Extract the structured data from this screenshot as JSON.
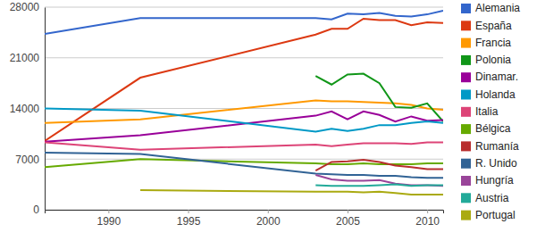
{
  "chart_data": {
    "type": "line",
    "x": [
      1986,
      1992,
      2003,
      2004,
      2005,
      2006,
      2007,
      2008,
      2009,
      2010,
      2011
    ],
    "xlim": [
      1986,
      2011
    ],
    "xticks": [
      1990,
      1995,
      2000,
      2005,
      2010
    ],
    "ylim": [
      0,
      28000
    ],
    "yticks": [
      0,
      7000,
      14000,
      21000,
      28000
    ],
    "grid": true,
    "legend": "right",
    "series": [
      {
        "name": "Alemania",
        "color": "#3366cc",
        "values": [
          24300,
          26500,
          26500,
          26300,
          27100,
          27000,
          27200,
          26800,
          26700,
          27000,
          27500
        ]
      },
      {
        "name": "España",
        "color": "#dc3912",
        "values": [
          9500,
          18250,
          24200,
          25000,
          25000,
          26400,
          26200,
          26200,
          25500,
          25900,
          25800
        ]
      },
      {
        "name": "Francia",
        "color": "#ff9900",
        "values": [
          12000,
          12500,
          15100,
          15000,
          15000,
          14900,
          14800,
          14700,
          14500,
          14000,
          13800
        ]
      },
      {
        "name": "Polonia",
        "color": "#109618",
        "values": [
          null,
          null,
          18500,
          17300,
          18700,
          18800,
          17500,
          14200,
          14100,
          14700,
          12200
        ]
      },
      {
        "name": "Dinamar.",
        "color": "#990099",
        "values": [
          9400,
          10300,
          13000,
          13600,
          12500,
          13600,
          13100,
          12200,
          12900,
          12300,
          12400
        ]
      },
      {
        "name": "Holanda",
        "color": "#0099c6",
        "values": [
          14000,
          13700,
          10800,
          11200,
          10900,
          11200,
          11700,
          11700,
          12000,
          12200,
          12000
        ]
      },
      {
        "name": "Italia",
        "color": "#dd4477",
        "values": [
          9300,
          8300,
          9000,
          8800,
          9000,
          9200,
          9200,
          9200,
          9100,
          9300,
          9300
        ]
      },
      {
        "name": "Bélgica",
        "color": "#66aa00",
        "values": [
          5900,
          7000,
          6400,
          6300,
          6300,
          6400,
          6300,
          6300,
          6300,
          6400,
          6400
        ]
      },
      {
        "name": "Rumanía",
        "color": "#b82e2e",
        "values": [
          null,
          null,
          5400,
          6600,
          6700,
          6900,
          6600,
          6100,
          5900,
          5600,
          5600
        ]
      },
      {
        "name": "R. Unido",
        "color": "#316395",
        "values": [
          7900,
          7700,
          5000,
          4900,
          4800,
          4800,
          4700,
          4700,
          4500,
          4400,
          4400
        ]
      },
      {
        "name": "Hungría",
        "color": "#994499",
        "values": [
          null,
          null,
          4800,
          4200,
          4000,
          4000,
          4100,
          3600,
          3400,
          3400,
          3300
        ]
      },
      {
        "name": "Austria",
        "color": "#22aa99",
        "values": [
          null,
          null,
          3400,
          3300,
          3300,
          3300,
          3400,
          3500,
          3300,
          3400,
          3400
        ]
      },
      {
        "name": "Portugal",
        "color": "#aaaa11",
        "values": [
          null,
          2700,
          2500,
          2500,
          2500,
          2400,
          2500,
          2300,
          2100,
          2100,
          2100
        ]
      }
    ]
  }
}
